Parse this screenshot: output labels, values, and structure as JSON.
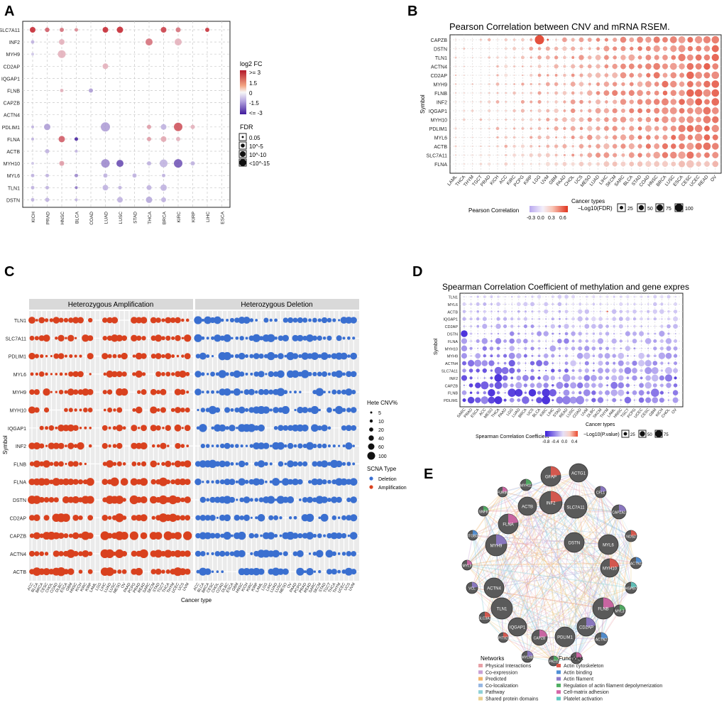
{
  "panels": {
    "A": {
      "letter": "A",
      "genes": [
        "SLC7A11",
        "INF2",
        "MYH9",
        "CD2AP",
        "IQGAP1",
        "FLNB",
        "CAPZB",
        "ACTN4",
        "PDLIM1",
        "FLNA",
        "ACTB",
        "MYH10",
        "MYL6",
        "TLN1",
        "DSTN"
      ],
      "cancers": [
        "KICH",
        "PRAD",
        "HNSC",
        "BLCA",
        "COAD",
        "LUAD",
        "LUSC",
        "STAD",
        "THCA",
        "BRCA",
        "KIRC",
        "KIRP",
        "LIHC",
        "ESCA"
      ],
      "legend_fc_title": "log2 FC",
      "legend_fc_ticks": [
        ">= 3",
        "1.5",
        "0",
        "-1.5",
        "<= -3"
      ],
      "legend_fdr_title": "FDR",
      "legend_fdr_labels": [
        "0.05",
        "10^-5",
        "10^-10",
        "<10^-15"
      ]
    },
    "B": {
      "letter": "B",
      "title": "Pearson Correlation between CNV and mRNA RSEM.",
      "ylabel": "Symbol",
      "xlabel": "Cancer types",
      "genes": [
        "CAPZB",
        "DSTN",
        "TLN1",
        "ACTN4",
        "CD2AP",
        "MYH9",
        "FLNB",
        "INF2",
        "IQGAP1",
        "MYH10",
        "PDLIM1",
        "MYL6",
        "ACTB",
        "SLC7A11",
        "FLNA"
      ],
      "cancers": [
        "LAML",
        "THCA",
        "THYM",
        "TGCT",
        "PRAD",
        "KICH",
        "ACC",
        "KIRC",
        "PCPG",
        "KIRP",
        "LGG",
        "UVM",
        "GBM",
        "PAAD",
        "CHOL",
        "UCS",
        "MESO",
        "LUAD",
        "LIHC",
        "SKCM",
        "SARC",
        "BLCA",
        "STAD",
        "COAD",
        "HNSC",
        "BRCA",
        "LUSC",
        "ESCA",
        "CESC",
        "UCEC",
        "READ",
        "OV"
      ],
      "legend_color_title": "Pearson Correlation",
      "legend_color_ticks": [
        "-0.3",
        "0.0",
        "0.3",
        "0.6"
      ],
      "legend_size_title": "−Log10(FDR)",
      "legend_size_labels": [
        "25",
        "50",
        "75",
        "100"
      ]
    },
    "C": {
      "letter": "C",
      "facet1": "Heterozygous Amplification",
      "facet2": "Heterozygous Deletion",
      "ylabel": "Symbol",
      "xlabel": "Cancer type",
      "genes": [
        "TLN1",
        "SLC7A11",
        "PDLIM1",
        "MYL6",
        "MYH9",
        "MYH10",
        "IQGAP1",
        "INF2",
        "FLNB",
        "FLNA",
        "DSTN",
        "CD2AP",
        "CAPZB",
        "ACTN4",
        "ACTB"
      ],
      "cancers": [
        "ACC",
        "BLCA",
        "BRCA",
        "CESC",
        "CHOL",
        "COAD",
        "DLBC",
        "ESCA",
        "GBM",
        "HNSC",
        "KICH",
        "KIRC",
        "KIRP",
        "LAML",
        "LGG",
        "LIHC",
        "LUAD",
        "LUSC",
        "MESO",
        "OV",
        "PAAD",
        "PCPG",
        "PRAD",
        "READ",
        "SARC",
        "SKCM",
        "STAD",
        "TGCT",
        "THCA",
        "THYM",
        "UCEC",
        "UCS",
        "UVM"
      ],
      "legend_size_title": "Hete CNV%",
      "legend_size_labels": [
        "5",
        "10",
        "20",
        "40",
        "60",
        "100"
      ],
      "legend_type_title": "SCNA Type",
      "legend_type_labels": [
        "Deletion",
        "Amplification"
      ],
      "colors": {
        "deletion": "#3a6fd0",
        "amplification": "#d9411e"
      }
    },
    "D": {
      "letter": "D",
      "title": "Spearman Correlation Coefficient of methylation and gene expres",
      "ylabel": "Symbol",
      "xlabel": "Cancer types",
      "genes": [
        "TLN1",
        "MYL6",
        "ACTB",
        "IQGAP1",
        "CD2AP",
        "DSTN",
        "FLNA",
        "MYH10",
        "MYH9",
        "ACTN4",
        "SLC7A11",
        "INF2",
        "CAPZB",
        "FLNB",
        "PDLIM1"
      ],
      "cancers": [
        "SARC",
        "PRAD",
        "ESCA",
        "ACC",
        "MESO",
        "THCA",
        "PAAD",
        "LGG",
        "LUAD",
        "BRCA",
        "UCS",
        "BLCA",
        "KIRC",
        "LIHC",
        "STAD",
        "READ",
        "LUSC",
        "COAD",
        "UVM",
        "DLBC",
        "SKCM",
        "THYM",
        "LAML",
        "HNSC",
        "TGCT",
        "PCPG",
        "UCEC",
        "CESC",
        "GBM",
        "KICH",
        "CHOL",
        "OV"
      ],
      "legend_color_title": "Spearman Correlation Coefficient",
      "legend_color_ticks": [
        "-0.8",
        "-0.4",
        "0.0",
        "0.4"
      ],
      "legend_size_title": "−Log10(P.value)",
      "legend_size_labels": [
        "25",
        "50",
        "75"
      ]
    },
    "E": {
      "letter": "E",
      "nodes": [
        "GFAP",
        "ACTG1",
        "CFL1",
        "MYH11",
        "FURIN",
        "ACTB",
        "INF2",
        "SLC7A11",
        "CAPZA1",
        "SNF8",
        "FLNA",
        "DSTN",
        "NOS2",
        "ITGB3",
        "MYH9",
        "MYL6",
        "MYL9",
        "ACTN4",
        "MYH10",
        "ACTN1",
        "VCL",
        "TLN1",
        "FLNB",
        "HSPB7",
        "SLC3A2",
        "IQGAP1",
        "CD2AP",
        "MYL3",
        "CAPZB",
        "PDLIM1",
        "PITX2",
        "ACTN2",
        "MYL6B",
        "PKD2",
        "NTAQ1"
      ],
      "networks_title": "Networks",
      "networks": [
        {
          "label": "Physical Interactions",
          "color": "#e8a0a6"
        },
        {
          "label": "Co-expression",
          "color": "#c9a0d4"
        },
        {
          "label": "Predicted",
          "color": "#f2b46a"
        },
        {
          "label": "Co-localization",
          "color": "#96b6e2"
        },
        {
          "label": "Pathway",
          "color": "#8fd1d6"
        },
        {
          "label": "Shared protein domains",
          "color": "#e8cf8f"
        }
      ],
      "functions_title": "Functions",
      "functions": [
        {
          "label": "Actin cytoskeleton",
          "color": "#e0584c"
        },
        {
          "label": "Actin binding",
          "color": "#4f8fd6"
        },
        {
          "label": "Actin filament",
          "color": "#8e79c9"
        },
        {
          "label": "Regulation of actin filament depolymerization",
          "color": "#4fae62"
        },
        {
          "label": "Cell-matrix adhesion",
          "color": "#d466a8"
        },
        {
          "label": "Platelet activation",
          "color": "#5fc8c0"
        }
      ]
    }
  },
  "colors": {
    "high": "#d7301f",
    "mid": "#f5f5f5",
    "low": "#4b1fa8",
    "panel_bg": "#ebebeb",
    "strip_bg": "#d9d9d9"
  }
}
